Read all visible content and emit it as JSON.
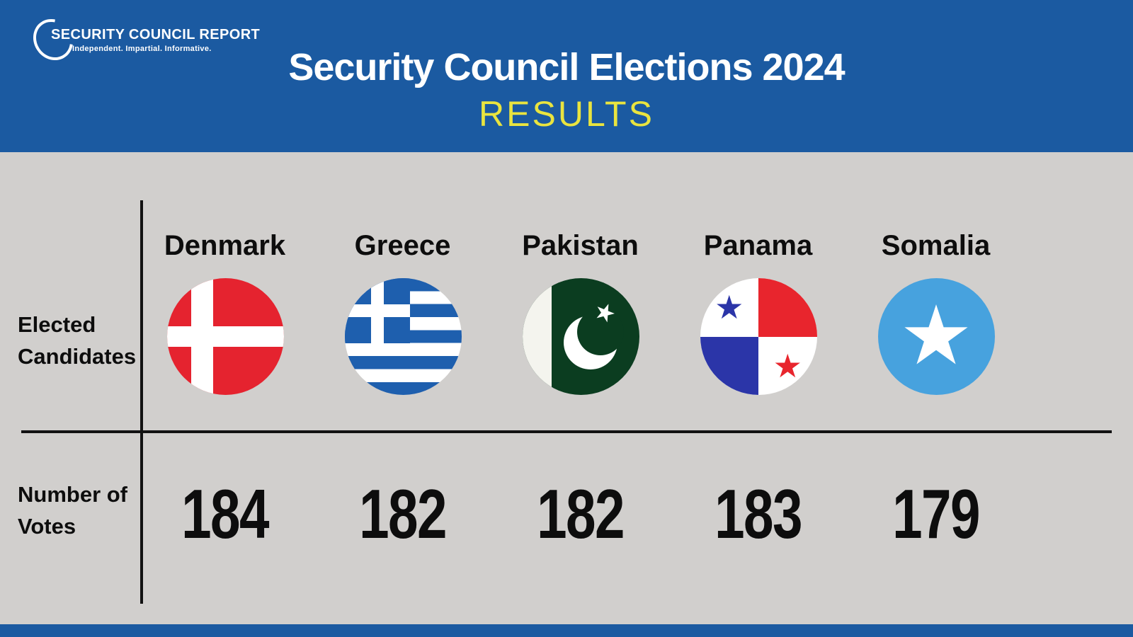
{
  "colors": {
    "header_blue": "#1b5aa1",
    "results_yellow": "#e9e43f",
    "body_gray": "#d1cfcd",
    "text_black": "#0d0d0d",
    "denmark_red": "#e5232f",
    "greece_blue": "#1e5fae",
    "pakistan_green": "#0b3d20",
    "panama_blue": "#2b35a8",
    "panama_red": "#e8252d",
    "somalia_blue": "#47a2de"
  },
  "header": {
    "logo_name": "SECURITY COUNCIL REPORT",
    "logo_tagline": "Independent. Impartial. Informative.",
    "title": "Security Council Elections 2024",
    "subtitle": "RESULTS"
  },
  "rows": {
    "candidates_line1": "Elected",
    "candidates_line2": "Candidates",
    "votes_line1": "Number of",
    "votes_line2": "Votes"
  },
  "candidates": [
    {
      "country": "Denmark",
      "votes": "184",
      "flag_icon": "denmark-flag-icon"
    },
    {
      "country": "Greece",
      "votes": "182",
      "flag_icon": "greece-flag-icon"
    },
    {
      "country": "Pakistan",
      "votes": "182",
      "flag_icon": "pakistan-flag-icon"
    },
    {
      "country": "Panama",
      "votes": "183",
      "flag_icon": "panama-flag-icon"
    },
    {
      "country": "Somalia",
      "votes": "179",
      "flag_icon": "somalia-flag-icon"
    }
  ],
  "chart_data": {
    "type": "table",
    "title": "Security Council Elections 2024 — Results",
    "categories": [
      "Denmark",
      "Greece",
      "Pakistan",
      "Panama",
      "Somalia"
    ],
    "row_labels": [
      "Elected Candidates",
      "Number of Votes"
    ],
    "series": [
      {
        "name": "Number of Votes",
        "values": [
          184,
          182,
          182,
          183,
          179
        ]
      }
    ]
  }
}
